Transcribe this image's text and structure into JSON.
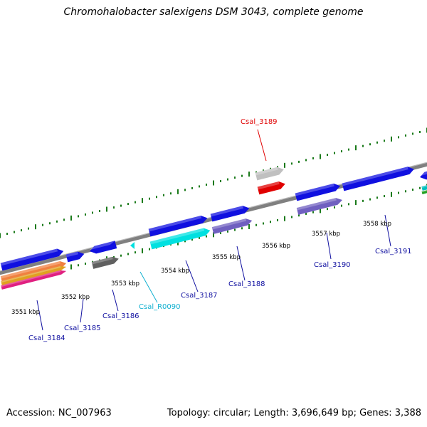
{
  "title": "Chromohalobacter salexigens DSM 3043, complete genome",
  "footer": {
    "accession": "Accession: NC_007963",
    "summary": "Topology: circular; Length: 3,696,649 bp; Genes: 3,388"
  },
  "colors": {
    "backbone": "#808080",
    "tick": "#1a7a1a",
    "gene_blue": "#1010e0",
    "gene_purple": "#7060c0",
    "gene_grey": "#606060",
    "gene_cyan": "#00e0e0",
    "gene_red": "#e00000",
    "gene_lightgrey": "#c0c0c0",
    "label_blue": "#1010a0",
    "label_red": "#e00000",
    "label_cyan": "#10b0d0"
  },
  "scale_labels": [
    "3551 kbp",
    "3552 kbp",
    "3553 kbp",
    "3554 kbp",
    "3555 kbp",
    "3556 kbp",
    "3557 kbp",
    "3558 kbp"
  ],
  "gene_labels": [
    {
      "text": "Csal_3184",
      "color": "label_blue"
    },
    {
      "text": "Csal_3185",
      "color": "label_blue"
    },
    {
      "text": "Csal_3186",
      "color": "label_blue"
    },
    {
      "text": "Csal_R0090",
      "color": "label_cyan"
    },
    {
      "text": "Csal_3187",
      "color": "label_blue"
    },
    {
      "text": "Csal_3188",
      "color": "label_blue"
    },
    {
      "text": "Csal_3189",
      "color": "label_red"
    },
    {
      "text": "Csal_3190",
      "color": "label_blue"
    },
    {
      "text": "Csal_3191",
      "color": "label_blue"
    }
  ]
}
